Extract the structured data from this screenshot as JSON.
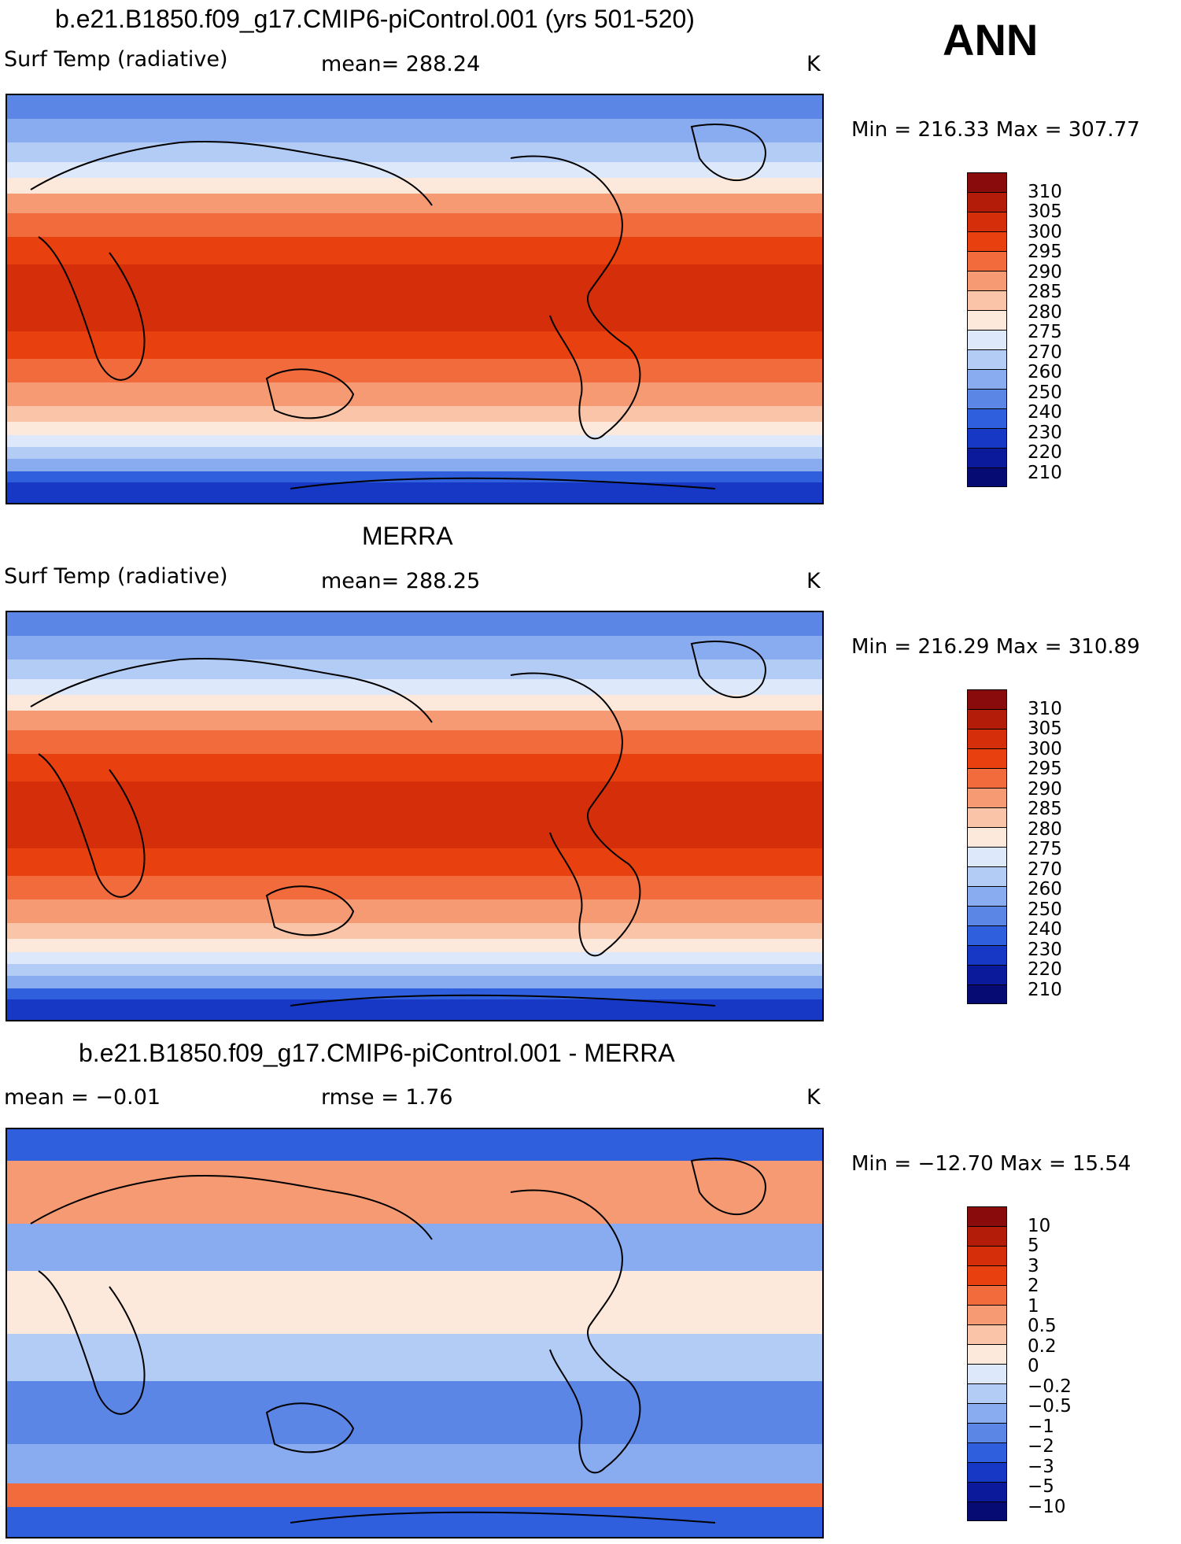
{
  "season": "ANN",
  "panels": [
    {
      "title": "b.e21.B1850.f09_g17.CMIP6-piControl.001 (yrs 501-520)",
      "variable": "Surf Temp (radiative)",
      "stat": "mean=  288.24",
      "units": "K",
      "minmax": "Min = 216.33 Max = 307.77",
      "levels": [
        "310",
        "305",
        "300",
        "295",
        "290",
        "285",
        "280",
        "275",
        "270",
        "260",
        "250",
        "240",
        "230",
        "220",
        "210"
      ],
      "colors": [
        "#8a0b0b",
        "#b31c08",
        "#d52e0a",
        "#e8400e",
        "#f26b3d",
        "#f69a74",
        "#fac4a8",
        "#fde9dc",
        "#dde9fb",
        "#b3ccf6",
        "#88acef",
        "#5b86e6",
        "#2f5fdc",
        "#1738c4",
        "#0a1a9a",
        "#050b73"
      ]
    },
    {
      "title": "MERRA",
      "variable": "Surf Temp (radiative)",
      "stat": "mean=  288.25",
      "units": "K",
      "minmax": "Min = 216.29 Max = 310.89",
      "levels": [
        "310",
        "305",
        "300",
        "295",
        "290",
        "285",
        "280",
        "275",
        "270",
        "260",
        "250",
        "240",
        "230",
        "220",
        "210"
      ],
      "colors": [
        "#8a0b0b",
        "#b31c08",
        "#d52e0a",
        "#e8400e",
        "#f26b3d",
        "#f69a74",
        "#fac4a8",
        "#fde9dc",
        "#dde9fb",
        "#b3ccf6",
        "#88acef",
        "#5b86e6",
        "#2f5fdc",
        "#1738c4",
        "#0a1a9a",
        "#050b73"
      ]
    },
    {
      "title": "b.e21.B1850.f09_g17.CMIP6-piControl.001 - MERRA",
      "variable": "mean =   −0.01",
      "stat": "rmse =    1.76",
      "units": "K",
      "minmax": "Min = −12.70 Max =   15.54",
      "levels": [
        "10",
        "5",
        "3",
        "2",
        "1",
        "0.5",
        "0.2",
        "0",
        "−0.2",
        "−0.5",
        "−1",
        "−2",
        "−3",
        "−5",
        "−10"
      ],
      "colors": [
        "#8a0b0b",
        "#b31c08",
        "#d52e0a",
        "#e8400e",
        "#f26b3d",
        "#f69a74",
        "#fac4a8",
        "#fde9dc",
        "#dde9fb",
        "#b3ccf6",
        "#88acef",
        "#5b86e6",
        "#2f5fdc",
        "#1738c4",
        "#0a1a9a",
        "#050b73"
      ]
    }
  ]
}
